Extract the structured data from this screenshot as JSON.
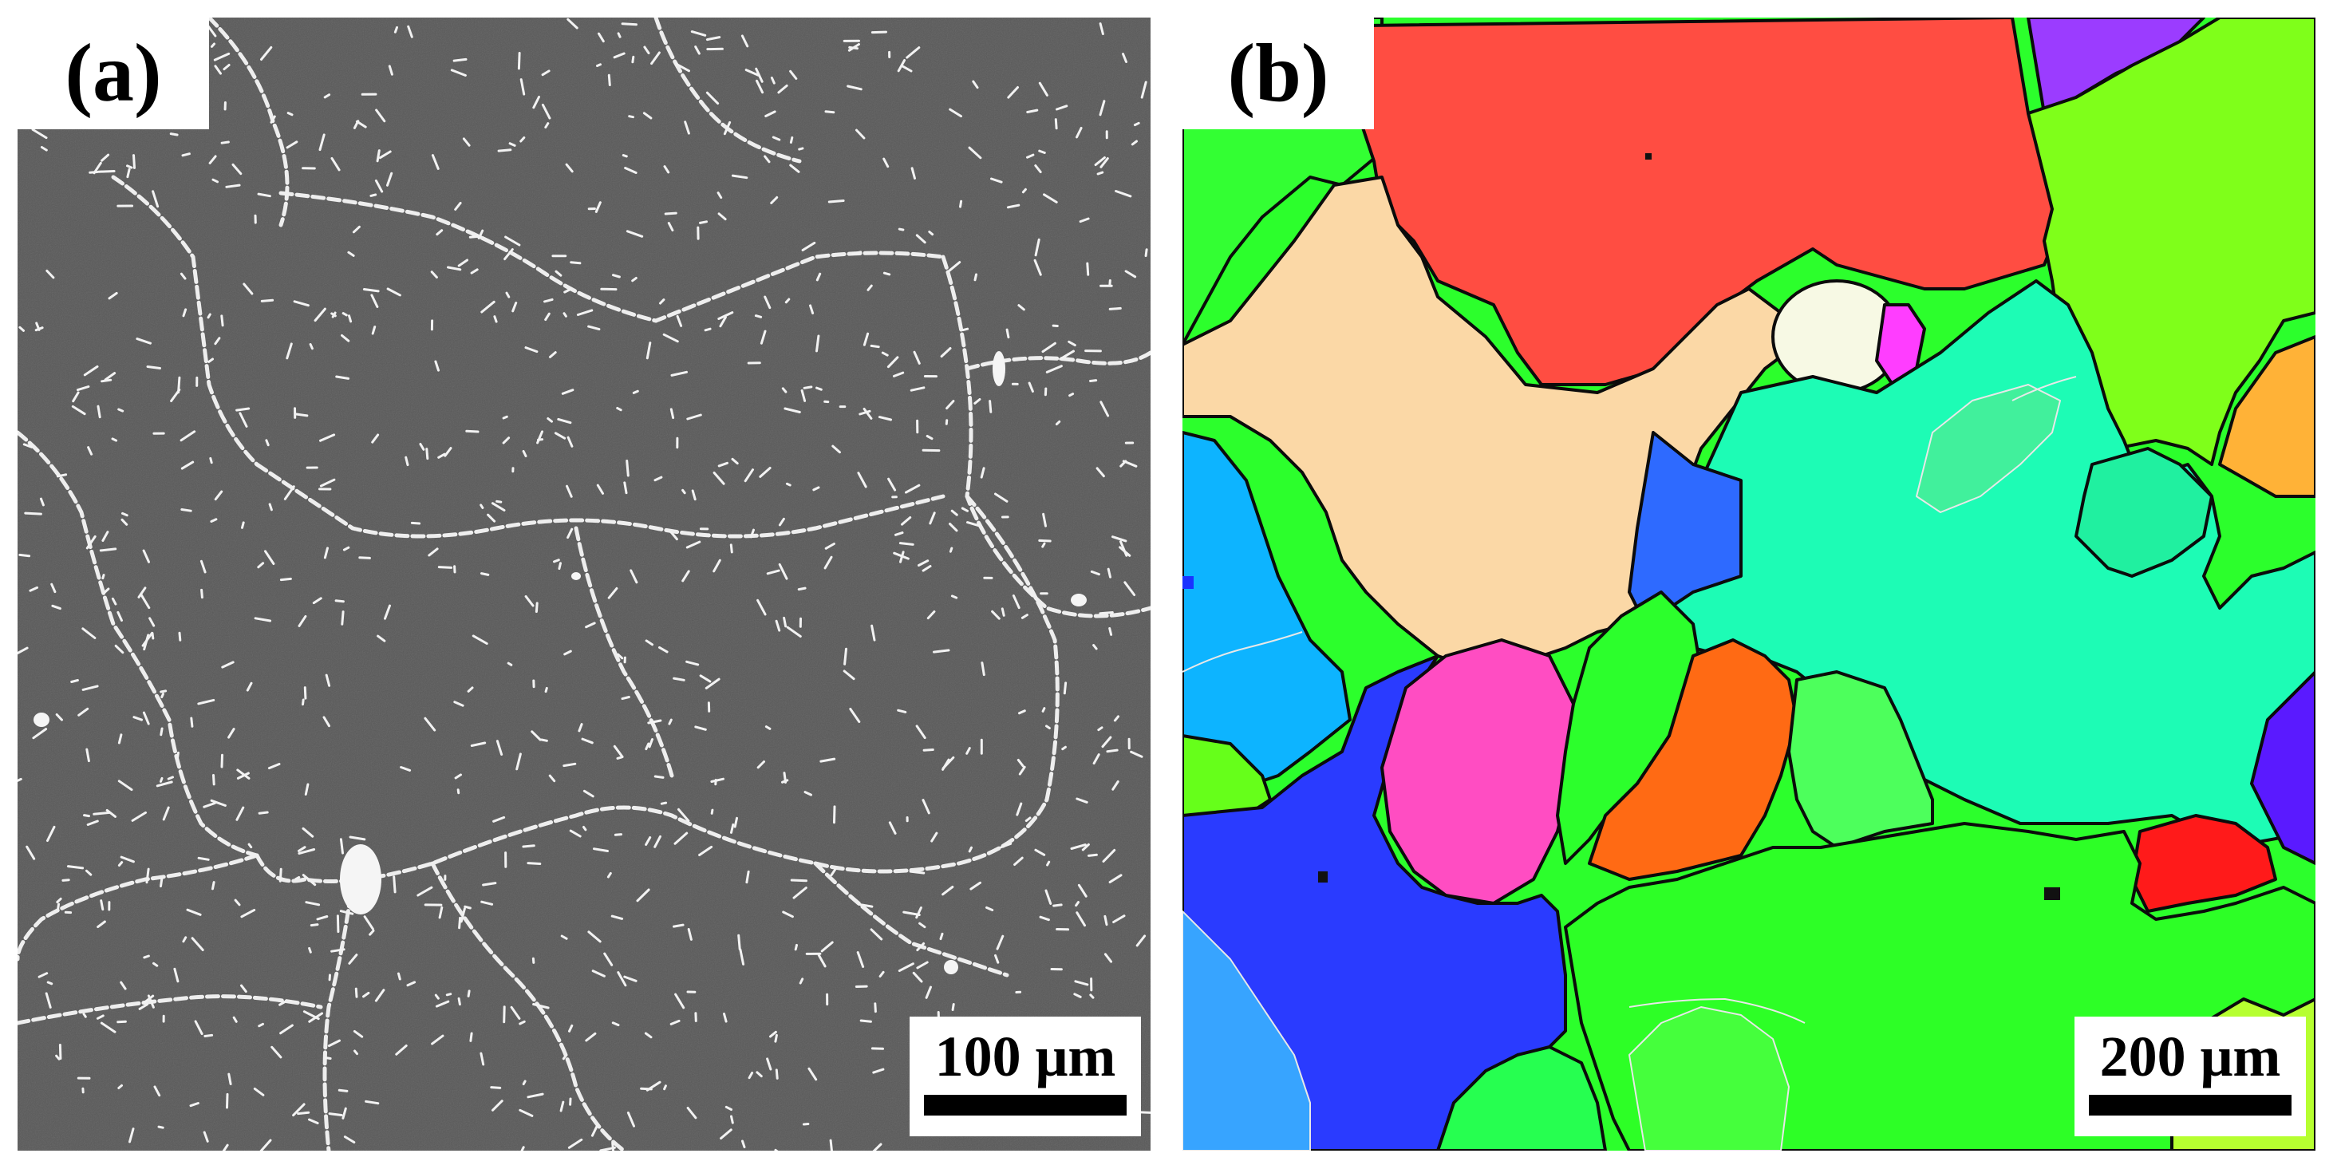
{
  "figure": {
    "panel_a": {
      "label": "(a)",
      "scale_bar": "100 μm",
      "colors": {
        "matrix": "#585858",
        "precipitate": "#f5f5f5"
      }
    },
    "panel_b": {
      "label": "(b)",
      "scale_bar": "200 μm",
      "colors": {
        "boundary": "#000000",
        "twin_boundary": "#e8e8e8"
      }
    }
  }
}
